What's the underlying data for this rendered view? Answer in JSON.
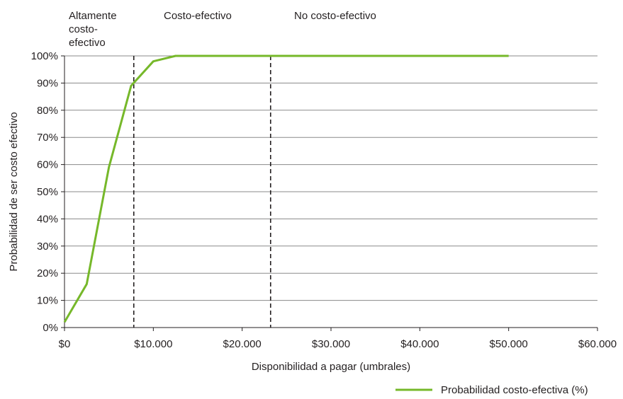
{
  "chart_data": {
    "type": "line",
    "title": "",
    "xlabel": "Disponibilidad a pagar (umbrales)",
    "ylabel": "Probabilidad de ser costo efectivo",
    "xlim": [
      0,
      60000
    ],
    "ylim": [
      0,
      100
    ],
    "x_ticks": [
      0,
      10000,
      20000,
      30000,
      40000,
      50000,
      60000
    ],
    "x_tick_labels": [
      "$0",
      "$10.000",
      "$20.000",
      "$30.000",
      "$40.000",
      "$50.000",
      "$60.000"
    ],
    "y_ticks": [
      0,
      10,
      20,
      30,
      40,
      50,
      60,
      70,
      80,
      90,
      100
    ],
    "y_tick_labels": [
      "0%",
      "10%",
      "20%",
      "30%",
      "40%",
      "50%",
      "60%",
      "70%",
      "80%",
      "90%",
      "100%"
    ],
    "grid": "horizontal",
    "legend_position": "bottom-right",
    "series": [
      {
        "name": "Probabilidad costo-efectiva (%)",
        "color": "#76b82a",
        "x": [
          0,
          2500,
          5000,
          7500,
          10000,
          12500,
          15000,
          20000,
          25000,
          30000,
          35000,
          40000,
          45000,
          50000
        ],
        "y": [
          2,
          16,
          59,
          89,
          98,
          100,
          100,
          100,
          100,
          100,
          100,
          100,
          100,
          100
        ]
      }
    ],
    "thresholds": [
      {
        "x": 7800,
        "style": "dashed",
        "color": "#231f20"
      },
      {
        "x": 23200,
        "style": "dashed",
        "color": "#231f20"
      }
    ],
    "region_labels": [
      {
        "lines": [
          "Altamente",
          "costo-",
          "efectivo"
        ]
      },
      {
        "lines": [
          "Costo-efectivo"
        ]
      },
      {
        "lines": [
          "No costo-efectivo"
        ]
      }
    ]
  }
}
